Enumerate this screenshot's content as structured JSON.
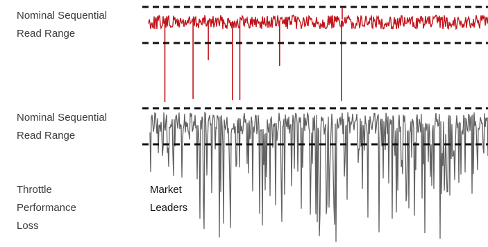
{
  "labels": {
    "top_band": [
      "Nominal Sequential",
      "Read Range"
    ],
    "mid_band": [
      "Nominal Sequential",
      "Read Range"
    ],
    "throttle": [
      "Throttle",
      "Performance",
      "Loss"
    ],
    "market": [
      "Market",
      "Leaders"
    ]
  },
  "chart_data": [
    {
      "type": "line",
      "series": [
        {
          "color": "#c0151b",
          "description_visible": "dense noisy trace inside nominal sequential read range band",
          "baseline_range": [
            0.78,
            1.0
          ],
          "dips": [
            {
              "x": 0.048,
              "y": 0.0
            },
            {
              "x": 0.131,
              "y": 0.03
            },
            {
              "x": 0.176,
              "y": 0.44
            },
            {
              "x": 0.247,
              "y": 0.02
            },
            {
              "x": 0.269,
              "y": 0.02
            },
            {
              "x": 0.386,
              "y": 0.38
            },
            {
              "x": 0.568,
              "y": 0.01
            }
          ]
        }
      ],
      "band": {
        "upper": 1.0,
        "lower": 0.78
      }
    },
    {
      "type": "line",
      "series": [
        {
          "color": "#616161",
          "description_visible": "dense noisy trace with frequent deep drops below nominal range",
          "baseline_range": [
            0.75,
            1.0
          ]
        }
      ],
      "band": {
        "upper": 1.0,
        "lower": 0.75
      }
    }
  ]
}
